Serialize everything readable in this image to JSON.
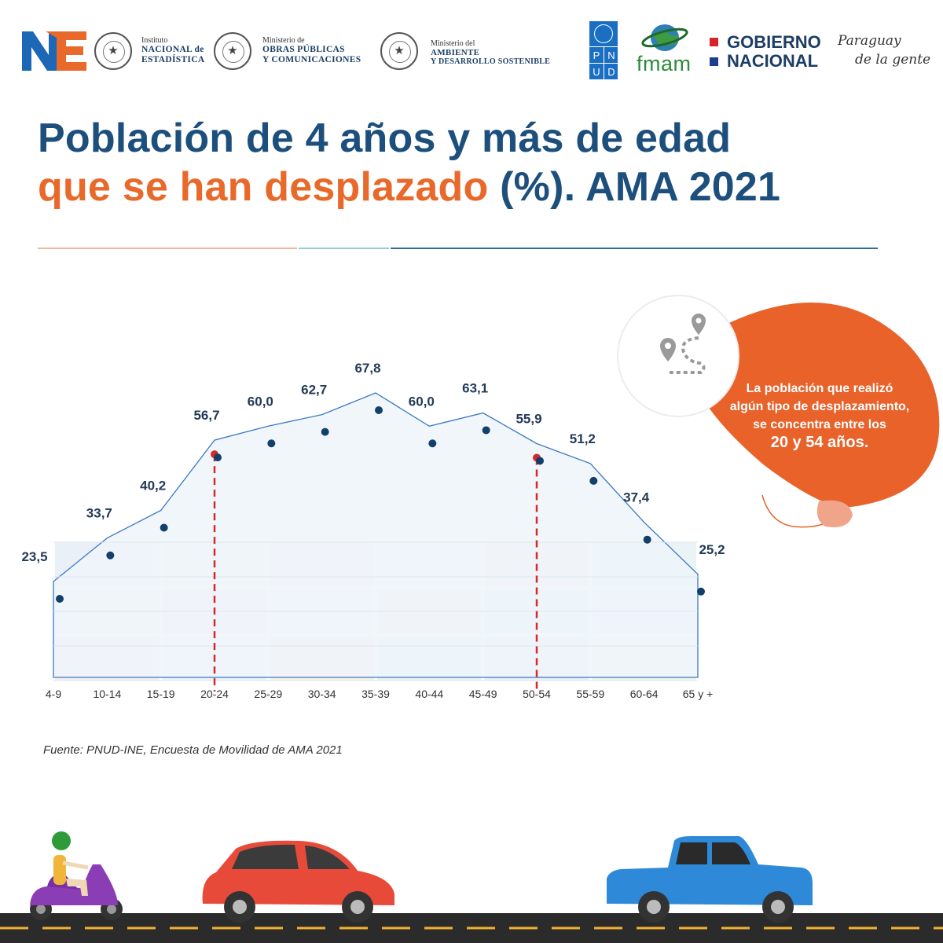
{
  "header": {
    "logos": {
      "ne": "NE",
      "ine": {
        "line1": "Instituto",
        "line2": "NACIONAL de",
        "line3": "ESTADÍSTICA"
      },
      "mopc": {
        "line1": "Ministerio de",
        "line2": "OBRAS PÚBLICAS",
        "line3": "Y COMUNICACIONES"
      },
      "mades": {
        "line1": "Ministerio del",
        "line2": "AMBIENTE",
        "line3": "Y DESARROLLO SOSTENIBLE"
      },
      "pnud": [
        "P",
        "N",
        "U",
        "D"
      ],
      "fmam": "fmam",
      "gobierno": {
        "line1": "GOBIERNO",
        "line2": "NACIONAL"
      },
      "slogan": {
        "line1": "Paraguay",
        "line2": "de la gente"
      }
    }
  },
  "title": {
    "line1": "Población de 4 años y más de edad",
    "line2_orange": "que se han desplazado",
    "line2_blue": " (%). AMA 2021"
  },
  "callout": {
    "text": "La población  que realizó algún tipo de desplazamiento, se concentra entre los",
    "highlight": "20 y 54 años",
    "end": "."
  },
  "source": "Fuente: PNUD-INE, Encuesta de Movilidad de AMA 2021",
  "colors": {
    "navy": "#1d4f7c",
    "orange": "#e8692a",
    "callout": "#e8622a",
    "point": "#13406b",
    "marker": "#d42a2a",
    "outline": "#3a78c2"
  },
  "chart_data": {
    "type": "area",
    "categories": [
      "4-9",
      "10-14",
      "15-19",
      "20-24",
      "25-29",
      "30-34",
      "35-39",
      "40-44",
      "45-49",
      "50-54",
      "55-59",
      "60-64",
      "65 y +"
    ],
    "values": [
      23.5,
      33.7,
      40.2,
      56.7,
      60.0,
      62.7,
      67.8,
      60.0,
      63.1,
      55.9,
      51.2,
      37.4,
      25.2
    ],
    "value_labels": [
      "23,5",
      "33,7",
      "40,2",
      "56,7",
      "60,0",
      "62,7",
      "67,8",
      "60,0",
      "63,1",
      "55,9",
      "51,2",
      "37,4",
      "25,2"
    ],
    "highlight_range": [
      "20-24",
      "50-54"
    ],
    "ylim": [
      0,
      70
    ],
    "grid": false,
    "legend": "none"
  }
}
